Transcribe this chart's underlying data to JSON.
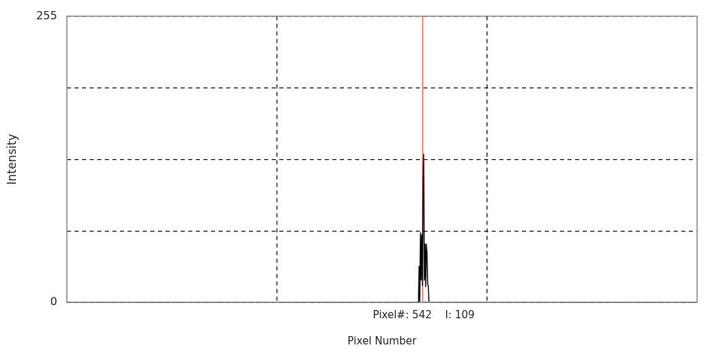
{
  "chart_data": {
    "type": "line",
    "xlabel": "Pixel Number",
    "ylabel": "Intensity",
    "categories": [
      null,
      null,
      null,
      null,
      null,
      null,
      null,
      null,
      null,
      null,
      null,
      null,
      null,
      null,
      null,
      null,
      null,
      null,
      null,
      null,
      null,
      null,
      null,
      null,
      null,
      null,
      null,
      null,
      null,
      null,
      null,
      null,
      null,
      null,
      null,
      null,
      null,
      null,
      null,
      null,
      null,
      null,
      null,
      null,
      null,
      null,
      null,
      null,
      null,
      null,
      null,
      null,
      null,
      null,
      null,
      null,
      null,
      null,
      null,
      null,
      null,
      null,
      null,
      null,
      null,
      null,
      null,
      null,
      null,
      null,
      null,
      null,
      null,
      null,
      null,
      null,
      null,
      null,
      null,
      null,
      null,
      null,
      null,
      null,
      null,
      null,
      null,
      null,
      null,
      null,
      null,
      null,
      null,
      null,
      null,
      null,
      null,
      null,
      null,
      null,
      null,
      null,
      null,
      null,
      null,
      null,
      null,
      null,
      null,
      null,
      null,
      null,
      null,
      null,
      null,
      null,
      null,
      null,
      null,
      null,
      null,
      null,
      null,
      null,
      null,
      null,
      null,
      null,
      null,
      null,
      null,
      null,
      null,
      null,
      null,
      null,
      null,
      null,
      null,
      null,
      null,
      null,
      null,
      null,
      null,
      null,
      null,
      null,
      null,
      null,
      null,
      null,
      null,
      null,
      null,
      null,
      null,
      null,
      null,
      null,
      null,
      null,
      null,
      null,
      null,
      null,
      null,
      null,
      null,
      null,
      null,
      null,
      null,
      null,
      null,
      null,
      null,
      null,
      null,
      null,
      null,
      null,
      null,
      null,
      null,
      null,
      null,
      null,
      null,
      null,
      null,
      null,
      null,
      null,
      null,
      null,
      null,
      null,
      null,
      null,
      null,
      null,
      null,
      null,
      null,
      null,
      null,
      null,
      null,
      null,
      null,
      null,
      null,
      null,
      null,
      null,
      null,
      null,
      null,
      null,
      null,
      null,
      null,
      null,
      null,
      null,
      null,
      null,
      null,
      null,
      null,
      null,
      null,
      null,
      null,
      null,
      null,
      null,
      null,
      null,
      null,
      null,
      null,
      null,
      null,
      null,
      null,
      null,
      null,
      null,
      null,
      null,
      null,
      null,
      null,
      null,
      null,
      null,
      null,
      null,
      null,
      null,
      null,
      null,
      null,
      null,
      null,
      null,
      null,
      null,
      null,
      null,
      null,
      null,
      null,
      null,
      null,
      null,
      null,
      null,
      null,
      null,
      null,
      null,
      null,
      null,
      null,
      null,
      null,
      null,
      null,
      null,
      null,
      null,
      null,
      null,
      null,
      null,
      null,
      null,
      null,
      null,
      null,
      null,
      null,
      null,
      null,
      null,
      null,
      null,
      null,
      null,
      null,
      null,
      null,
      null,
      null,
      null,
      null,
      null,
      null,
      null,
      null,
      null,
      null,
      null,
      null,
      null,
      null,
      null,
      null,
      null,
      null,
      null,
      null,
      null,
      null,
      null,
      null,
      null,
      null,
      null,
      null,
      null,
      null,
      null,
      null,
      null,
      null,
      null,
      null,
      null,
      null,
      null,
      null,
      null,
      null,
      null,
      null,
      null,
      null,
      null,
      null,
      null,
      null,
      null,
      null,
      null,
      null,
      null,
      null,
      null,
      null,
      null,
      null,
      null,
      null,
      null,
      null,
      null,
      null,
      null,
      null,
      null,
      null,
      null,
      null,
      null,
      null,
      null,
      null,
      null,
      null,
      null,
      null,
      null,
      null,
      null,
      null,
      null,
      null,
      null,
      null,
      null,
      null,
      null,
      null,
      null,
      null,
      null,
      null,
      null,
      null,
      null,
      null,
      null,
      null,
      null,
      null,
      null,
      null,
      null,
      null,
      null,
      null,
      null,
      null,
      null,
      null,
      null,
      null,
      null,
      null,
      null,
      null,
      null,
      null,
      null,
      null,
      null,
      null,
      null,
      null,
      null,
      null,
      null,
      null,
      null,
      null,
      null,
      null,
      null,
      null,
      null,
      null,
      null,
      null,
      null,
      null,
      null,
      null,
      null,
      null,
      null,
      null,
      null,
      null,
      null,
      null,
      null,
      null,
      null,
      null,
      null,
      null,
      null,
      null,
      null,
      null,
      null,
      null,
      null,
      null,
      null,
      null,
      null,
      null,
      null,
      null,
      null,
      null,
      null,
      null,
      null,
      null,
      null,
      null,
      null,
      null,
      null,
      null,
      null,
      null,
      null,
      null,
      null,
      null,
      null,
      null,
      null,
      null,
      null,
      null,
      null,
      null,
      null,
      null,
      null,
      null,
      null,
      null,
      null,
      null,
      null,
      null,
      null,
      null,
      null,
      null,
      null,
      null,
      null,
      null,
      null,
      null,
      null,
      null,
      null,
      null,
      null,
      null,
      null,
      null,
      null,
      null,
      null,
      null,
      null,
      null,
      null,
      null,
      null,
      null,
      null,
      null,
      null,
      null,
      null,
      null,
      null,
      null,
      null,
      null,
      null,
      null,
      null,
      null,
      null,
      null,
      null,
      null,
      null,
      null,
      null,
      null,
      null,
      null,
      null,
      null,
      null,
      null,
      null,
      null,
      null,
      null,
      null,
      null,
      null,
      null,
      null,
      null,
      null,
      null,
      null,
      null,
      null,
      null,
      null,
      null,
      null,
      null,
      null,
      null,
      null,
      null,
      null,
      null,
      null,
      null,
      null,
      null,
      null,
      null,
      null,
      null,
      null,
      null,
      null,
      null,
      null,
      null,
      null,
      null,
      null,
      null,
      null,
      null,
      null,
      null,
      null,
      null,
      null,
      null,
      null,
      null,
      null,
      null,
      null,
      null,
      null,
      null,
      null,
      null,
      null,
      null,
      null,
      null,
      null,
      null,
      null,
      null,
      null,
      null,
      null,
      null,
      null,
      null,
      null,
      null,
      null,
      null,
      null,
      null,
      null,
      null,
      null,
      null,
      null,
      null,
      null,
      null,
      null,
      null,
      null,
      null,
      null,
      null,
      null,
      null,
      null,
      null,
      null,
      null,
      null,
      null,
      null,
      null,
      null,
      null,
      null,
      null,
      null,
      null,
      null,
      null,
      null,
      null,
      null,
      null,
      null,
      null,
      null,
      null,
      null,
      null,
      null,
      null,
      null,
      null,
      null,
      null,
      null,
      null,
      null,
      null,
      null,
      null,
      null,
      null,
      null,
      null,
      null,
      null,
      null,
      null,
      null,
      null,
      null,
      null,
      null,
      null,
      null,
      null,
      null,
      null,
      null,
      null,
      null,
      null,
      null,
      null,
      null,
      null,
      null,
      null,
      null,
      null,
      null,
      null,
      null,
      null,
      null,
      null,
      null,
      null,
      null,
      null,
      null,
      null,
      null,
      null,
      null,
      null,
      null,
      null,
      null,
      null,
      null,
      null,
      null,
      null,
      null,
      null,
      null,
      null,
      null,
      null,
      null,
      null,
      null,
      null,
      null,
      null,
      null,
      null,
      null,
      null,
      null,
      null,
      null,
      null,
      null,
      null,
      null,
      null,
      null,
      null,
      null,
      null,
      null,
      null,
      null,
      null,
      null,
      null,
      null,
      null,
      null,
      null,
      null,
      null,
      null,
      null,
      null,
      null,
      null,
      null,
      null,
      null,
      null,
      null,
      null,
      null,
      null,
      null,
      null,
      null,
      null,
      null,
      null,
      null,
      null,
      null,
      null,
      null,
      null,
      null,
      null,
      null,
      null,
      null,
      null,
      null,
      null,
      null,
      null,
      null,
      null,
      null,
      null,
      null,
      null,
      null,
      null,
      null,
      null,
      null,
      null,
      null,
      null,
      null,
      null,
      null,
      null,
      null,
      null,
      null,
      null,
      null,
      null,
      null,
      null,
      null,
      null,
      null,
      null,
      null,
      null,
      null,
      null,
      null,
      null,
      null,
      null,
      null,
      null,
      null,
      null,
      null,
      null,
      null,
      null,
      null,
      null,
      null,
      null,
      null,
      null,
      null,
      null,
      null,
      null,
      null,
      null,
      null,
      null,
      null,
      null,
      null,
      null,
      null,
      null,
      null,
      null,
      null,
      null,
      null,
      null,
      null,
      null,
      null,
      null,
      null,
      null,
      null,
      null,
      null,
      null,
      null,
      null,
      null,
      null,
      null,
      null,
      null,
      null,
      null,
      null,
      null,
      null,
      null,
      null,
      null,
      null,
      null,
      null,
      null,
      null,
      null,
      null,
      null,
      null,
      null,
      null,
      null,
      null,
      null,
      null,
      null,
      null
    ],
    "series": [
      {
        "color": "#000000",
        "values": [
          0,
          0,
          0,
          0,
          0,
          0,
          0,
          0,
          0,
          0,
          0,
          0,
          0,
          0,
          0,
          0,
          0,
          0,
          0,
          0,
          0,
          0,
          0,
          0,
          0,
          0,
          0,
          0,
          0,
          0,
          0,
          0,
          0,
          0,
          0,
          0,
          0,
          0,
          0,
          0,
          0,
          0,
          0,
          0,
          0,
          0,
          0,
          0,
          0,
          0,
          0,
          0,
          0,
          0,
          0,
          0,
          0,
          0,
          0,
          0,
          0,
          0,
          0,
          0,
          0,
          0,
          0,
          0,
          0,
          0,
          0,
          0,
          0,
          0,
          0,
          0,
          0,
          0,
          0,
          0,
          0,
          0,
          0,
          0,
          0,
          0,
          0,
          0,
          0,
          0,
          0,
          0,
          0,
          0,
          0,
          0,
          0,
          0,
          0,
          0,
          0,
          0,
          0,
          0,
          0,
          0,
          0,
          0,
          0,
          0,
          0,
          0,
          0,
          0,
          0,
          0,
          0,
          0,
          0,
          0,
          0,
          0,
          0,
          0,
          0,
          0,
          0,
          0,
          0,
          0,
          0,
          0,
          0,
          0,
          0,
          0,
          0,
          0,
          0,
          0,
          0,
          0,
          0,
          0,
          0,
          0,
          0,
          0,
          0,
          0,
          0,
          0,
          0,
          0,
          0,
          0,
          0,
          0,
          0,
          0,
          0,
          0,
          0,
          0,
          0,
          0,
          0,
          0,
          0,
          0,
          0,
          0,
          0,
          0,
          0,
          0,
          0,
          0,
          0,
          0,
          0,
          0,
          0,
          0,
          0,
          0,
          0,
          0,
          0,
          0,
          0,
          0,
          0,
          0,
          0,
          0,
          0,
          0,
          0,
          0,
          0,
          0,
          0,
          0,
          0,
          0,
          0,
          0,
          0,
          0,
          0,
          0,
          0,
          0,
          0,
          0,
          0,
          0,
          0,
          0,
          0,
          0,
          0,
          0,
          0,
          0,
          0,
          0,
          0,
          0,
          0,
          0,
          0,
          0,
          0,
          0,
          0,
          0,
          0,
          0,
          0,
          0,
          0,
          0,
          0,
          0,
          0,
          0,
          0,
          0,
          0,
          0,
          0,
          0,
          0,
          0,
          0,
          0,
          0,
          0,
          0,
          0,
          0,
          0,
          0,
          0,
          0,
          0,
          0,
          0,
          0,
          0,
          0,
          0,
          0,
          0,
          0,
          0,
          0,
          0,
          0,
          0,
          0,
          0,
          0,
          0,
          0,
          0,
          0,
          0,
          0,
          0,
          0,
          0,
          0,
          0,
          0,
          0,
          0,
          0,
          0,
          0,
          0,
          0,
          0,
          0,
          0,
          0,
          0,
          0,
          0,
          0,
          0,
          0,
          0,
          0,
          0,
          0,
          0,
          0,
          0,
          0,
          0,
          0,
          0,
          0,
          0,
          0,
          0,
          0,
          0,
          0,
          0,
          0,
          0,
          0,
          0,
          0,
          0,
          0,
          0,
          0,
          0,
          0,
          0,
          0,
          0,
          0,
          0,
          0,
          0,
          0,
          0,
          0,
          0,
          0,
          0,
          0,
          0,
          0,
          0,
          0,
          0,
          0,
          0,
          0,
          0,
          0,
          0,
          0,
          0,
          0,
          0,
          0,
          0,
          0,
          0,
          0,
          0,
          0,
          0,
          0,
          0,
          0,
          0,
          0,
          0,
          0,
          0,
          0,
          0,
          0,
          0,
          0,
          0,
          0,
          0,
          0,
          0,
          0,
          0,
          0,
          0,
          0,
          0,
          0,
          0,
          0,
          0,
          0,
          0,
          0,
          0,
          0,
          0,
          0,
          0,
          0,
          0,
          0,
          0,
          0,
          0,
          0,
          0,
          0,
          0,
          0,
          0,
          0,
          0,
          0,
          0,
          0,
          0,
          0,
          0,
          0,
          0,
          0,
          0,
          0,
          0,
          0,
          0,
          0,
          0,
          0,
          0,
          0,
          0,
          0,
          0,
          0,
          0,
          0,
          0,
          0,
          0,
          0,
          0,
          0,
          0,
          0,
          0,
          0,
          0,
          0,
          0,
          0,
          0,
          0,
          0,
          0,
          0,
          0,
          0,
          0,
          0,
          0,
          0,
          0,
          0,
          0,
          0,
          0,
          0,
          0,
          0,
          0,
          0,
          0,
          0,
          0,
          0,
          0,
          0,
          0,
          0,
          0,
          0,
          0,
          0,
          0,
          0,
          0,
          0,
          0,
          0,
          0,
          0,
          0,
          0,
          0,
          0,
          0,
          0,
          0,
          0,
          0,
          0,
          0,
          0,
          0,
          0,
          0,
          0,
          0,
          0,
          0,
          0,
          0,
          0,
          0,
          0,
          0,
          32,
          0,
          62,
          20,
          60,
          15,
          109,
          132,
          20,
          52,
          14,
          52,
          44,
          16,
          15,
          0,
          0,
          0,
          0,
          0,
          0,
          0,
          0,
          0,
          0,
          0,
          0,
          0,
          0,
          0,
          0,
          0,
          0,
          0,
          0,
          0,
          0,
          0,
          0,
          0,
          0,
          0,
          0,
          0,
          0,
          0,
          0,
          0,
          0,
          0,
          0,
          0,
          0,
          0,
          0,
          0,
          0,
          0,
          0,
          0,
          0,
          0,
          0,
          0,
          0,
          0,
          0,
          0,
          0,
          0,
          0,
          0,
          0,
          0,
          0,
          0,
          0,
          0,
          0,
          0,
          0,
          0,
          0,
          0,
          0,
          0,
          0,
          0,
          0,
          0,
          0,
          0,
          0,
          0,
          0,
          0,
          0,
          0,
          0,
          0,
          0,
          0,
          0,
          0,
          0,
          0,
          0,
          0,
          0,
          0,
          0,
          0,
          0,
          0,
          0,
          0,
          0,
          0,
          0,
          0,
          0,
          0,
          0,
          0,
          0,
          0,
          0,
          0,
          0,
          0,
          0,
          0,
          0,
          0,
          0,
          0,
          0,
          0,
          0,
          0,
          0,
          0,
          0,
          0,
          0,
          0,
          0,
          0,
          0,
          0,
          0,
          0,
          0,
          0,
          0,
          0,
          0,
          0,
          0,
          0,
          0,
          0,
          0,
          0,
          0,
          0,
          0,
          0,
          0,
          0,
          0,
          0,
          0,
          0,
          0,
          0,
          0,
          0,
          0,
          0,
          0,
          0,
          0,
          0,
          0,
          0,
          0,
          0,
          0,
          0,
          0,
          0,
          0,
          0,
          0,
          0,
          0,
          0,
          0,
          0,
          0,
          0,
          0,
          0,
          0,
          0,
          0,
          0,
          0,
          0,
          0,
          0,
          0,
          0,
          0,
          0,
          0,
          0,
          0,
          0,
          0,
          0,
          0,
          0,
          0,
          0,
          0,
          0,
          0,
          0,
          0,
          0,
          0,
          0,
          0,
          0,
          0,
          0,
          0,
          0,
          0,
          0,
          0,
          0,
          0,
          0,
          0,
          0,
          0,
          0,
          0,
          0,
          0,
          0,
          0,
          0,
          0,
          0,
          0,
          0,
          0,
          0,
          0,
          0,
          0,
          0,
          0,
          0,
          0,
          0,
          0,
          0,
          0,
          0,
          0,
          0,
          0,
          0,
          0,
          0,
          0,
          0,
          0,
          0,
          0,
          0,
          0,
          0,
          0,
          0,
          0,
          0,
          0,
          0,
          0,
          0,
          0,
          0,
          0,
          0,
          0,
          0,
          0,
          0,
          0,
          0,
          0,
          0,
          0,
          0,
          0,
          0,
          0,
          0,
          0,
          0,
          0,
          0,
          0,
          0,
          0,
          0,
          0,
          0,
          0,
          0,
          0,
          0,
          0,
          0,
          0,
          0,
          0,
          0,
          0,
          0,
          0,
          0,
          0,
          0,
          0,
          0,
          0,
          0,
          0,
          0,
          0,
          0,
          0,
          0,
          0,
          0,
          0,
          0,
          0,
          0,
          0,
          0,
          0,
          0,
          0,
          0,
          0,
          0,
          0,
          0,
          0,
          0,
          0,
          0,
          0,
          0,
          0,
          0,
          0,
          0,
          0,
          0,
          0,
          0,
          0,
          0,
          0,
          0,
          0,
          0,
          0,
          0,
          0,
          0,
          0,
          0,
          0,
          0,
          0,
          0,
          0,
          0,
          0,
          0,
          0,
          0,
          0,
          0,
          0,
          0,
          0,
          0,
          0,
          0,
          0,
          0,
          0,
          0,
          0,
          0,
          0,
          0,
          0,
          0,
          0,
          0,
          0,
          0
        ]
      }
    ],
    "ylim": [
      0,
      255
    ],
    "yticks": [
      0,
      {
        "value": 63.75,
        "label": null
      },
      {
        "value": 127.5,
        "label": null
      },
      {
        "value": 191.25,
        "label": null
      },
      255
    ],
    "grid": true,
    "legend": false,
    "marker": "none",
    "line_style": "solid",
    "annotations": [
      "Pixel#: 542    I: 109"
    ]
  }
}
